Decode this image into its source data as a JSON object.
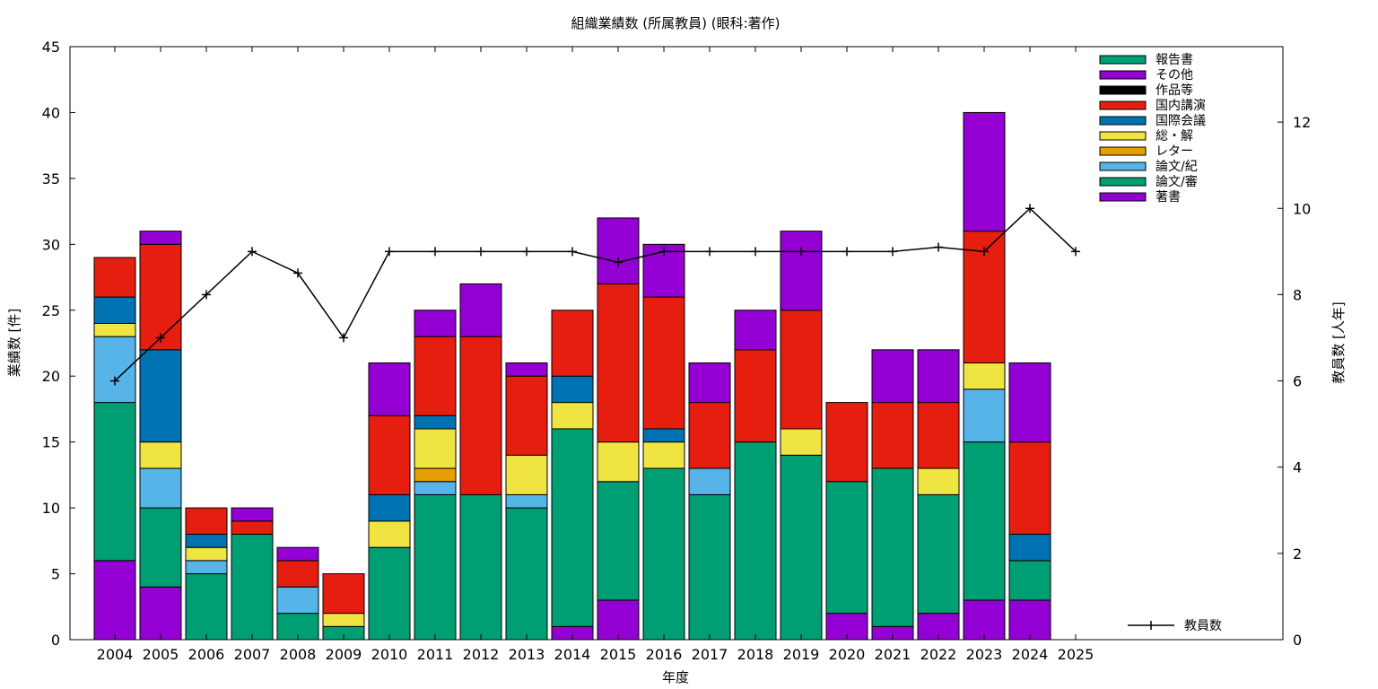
{
  "chart_data": {
    "type": "bar",
    "stacked": true,
    "title": "組織業績数 (所属教員) (眼科:著作)",
    "xlabel": "年度",
    "ylabel": "業績数 [件]",
    "y2label": "教員数 [人年]",
    "ylim": [
      0,
      45
    ],
    "y2lim": [
      0,
      13.75
    ],
    "yticks": [
      0,
      5,
      10,
      15,
      20,
      25,
      30,
      35,
      40,
      45
    ],
    "y2ticks": [
      0,
      2,
      4,
      6,
      8,
      10,
      12
    ],
    "grid": false,
    "legend_position": "top-right",
    "categories": [
      "2004",
      "2005",
      "2006",
      "2007",
      "2008",
      "2009",
      "2010",
      "2011",
      "2012",
      "2013",
      "2014",
      "2015",
      "2016",
      "2017",
      "2018",
      "2019",
      "2020",
      "2021",
      "2022",
      "2023",
      "2024",
      "2025"
    ],
    "series": [
      {
        "name": "著書",
        "color": "#9400d3",
        "values": [
          6,
          4,
          0,
          0,
          0,
          0,
          0,
          0,
          0,
          0,
          1,
          3,
          0,
          0,
          0,
          0,
          2,
          1,
          2,
          3,
          3,
          0
        ]
      },
      {
        "name": "論文/審",
        "color": "#009e73",
        "values": [
          12,
          6,
          5,
          8,
          2,
          1,
          7,
          11,
          11,
          10,
          15,
          9,
          13,
          11,
          15,
          14,
          10,
          12,
          9,
          12,
          3,
          0
        ]
      },
      {
        "name": "論文/紀",
        "color": "#56b4e9",
        "values": [
          5,
          3,
          1,
          0,
          2,
          0,
          0,
          1,
          0,
          1,
          0,
          0,
          0,
          2,
          0,
          0,
          0,
          0,
          0,
          4,
          0,
          0
        ]
      },
      {
        "name": "レター",
        "color": "#e69f00",
        "values": [
          0,
          0,
          0,
          0,
          0,
          0,
          0,
          1,
          0,
          0,
          0,
          0,
          0,
          0,
          0,
          0,
          0,
          0,
          0,
          0,
          0,
          0
        ]
      },
      {
        "name": "総・解",
        "color": "#f0e442",
        "values": [
          1,
          2,
          1,
          0,
          0,
          1,
          2,
          3,
          0,
          3,
          2,
          3,
          2,
          0,
          0,
          2,
          0,
          0,
          2,
          2,
          0,
          0
        ]
      },
      {
        "name": "国際会議",
        "color": "#0072b2",
        "values": [
          2,
          7,
          1,
          0,
          0,
          0,
          2,
          1,
          0,
          0,
          2,
          0,
          1,
          0,
          0,
          0,
          0,
          0,
          0,
          0,
          2,
          0
        ]
      },
      {
        "name": "国内講演",
        "color": "#e51e10",
        "values": [
          3,
          8,
          2,
          1,
          2,
          3,
          6,
          6,
          12,
          6,
          5,
          12,
          10,
          5,
          7,
          9,
          6,
          5,
          5,
          10,
          7,
          0
        ]
      },
      {
        "name": "作品等",
        "color": "#000000",
        "values": [
          0,
          0,
          0,
          0,
          0,
          0,
          0,
          0,
          0,
          0,
          0,
          0,
          0,
          0,
          0,
          0,
          0,
          0,
          0,
          0,
          0,
          0
        ]
      },
      {
        "name": "その他",
        "color": "#9400d3",
        "values": [
          0,
          1,
          0,
          1,
          1,
          0,
          4,
          2,
          4,
          1,
          0,
          5,
          4,
          3,
          3,
          6,
          0,
          4,
          4,
          9,
          6,
          0
        ]
      },
      {
        "name": "報告書",
        "color": "#009e73",
        "values": [
          0,
          0,
          0,
          0,
          0,
          0,
          0,
          0,
          0,
          0,
          0,
          0,
          0,
          0,
          0,
          0,
          0,
          0,
          0,
          0,
          0,
          0
        ]
      }
    ],
    "line": {
      "name": "教員数",
      "axis": "y2",
      "color": "#000000",
      "values": [
        6,
        7,
        8,
        9,
        8.5,
        7,
        9,
        9,
        9,
        9,
        9,
        8.75,
        9,
        9,
        9,
        9,
        9,
        9,
        9.1,
        9,
        10,
        9
      ]
    }
  }
}
